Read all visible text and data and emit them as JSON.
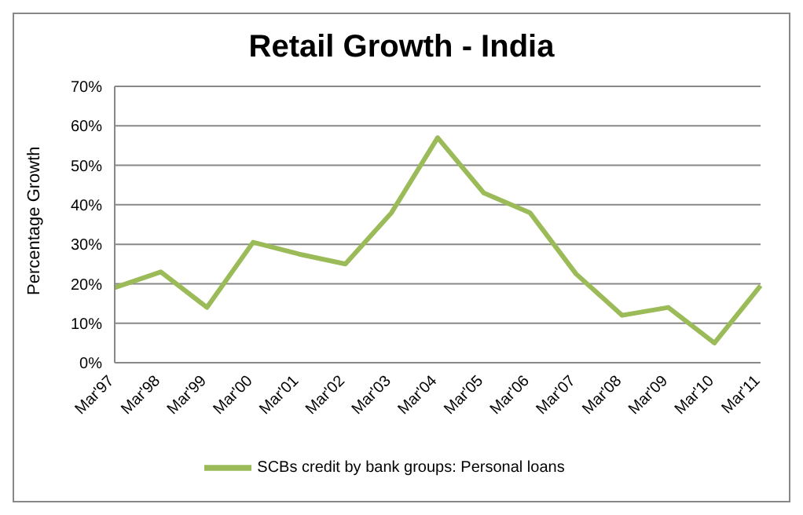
{
  "chart_data": {
    "type": "line",
    "title": "Retail Growth - India",
    "ylabel": "Percentage Growth",
    "categories": [
      "Mar'97",
      "Mar'98",
      "Mar'99",
      "Mar'00",
      "Mar'01",
      "Mar'02",
      "Mar'03",
      "Mar'04",
      "Mar'05",
      "Mar'06",
      "Mar'07",
      "Mar'08",
      "Mar'09",
      "Mar'10",
      "Mar'11"
    ],
    "series": [
      {
        "name": "SCBs credit by bank groups: Personal loans",
        "color": "#9bbb59",
        "values": [
          19,
          23,
          14,
          30.5,
          27.5,
          25,
          38,
          57,
          43,
          38,
          22.5,
          12,
          14,
          5,
          19.5
        ]
      }
    ],
    "ylim": [
      0,
      70
    ],
    "yticks": [
      {
        "value": 0,
        "label": "0%"
      },
      {
        "value": 10,
        "label": "10%"
      },
      {
        "value": 20,
        "label": "20%"
      },
      {
        "value": 30,
        "label": "30%"
      },
      {
        "value": 40,
        "label": "40%"
      },
      {
        "value": 50,
        "label": "50%"
      },
      {
        "value": 60,
        "label": "60%"
      },
      {
        "value": 70,
        "label": "70%"
      }
    ],
    "grid": "y",
    "legend": "bottom",
    "marker": "none",
    "line_style": "solid"
  }
}
